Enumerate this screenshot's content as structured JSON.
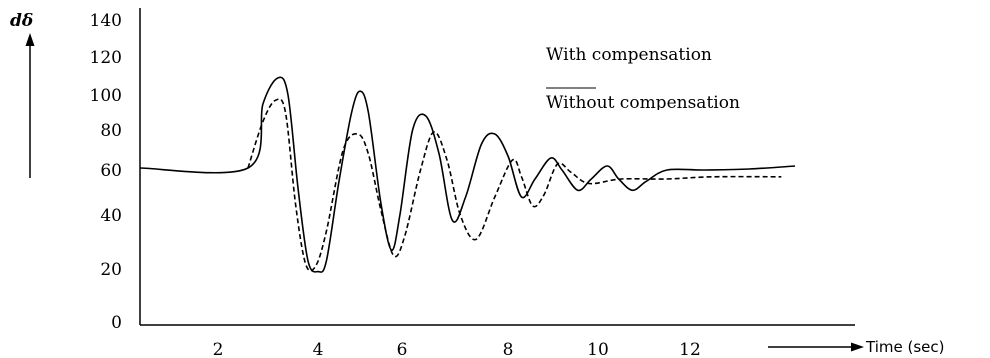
{
  "chart_data": {
    "type": "line",
    "ylabel": "dδ",
    "xlabel": "Time (sec)",
    "ylim": [
      0,
      140
    ],
    "y_ticks": [
      "0",
      "20",
      "40",
      "60",
      "80",
      "100",
      "120",
      "140"
    ],
    "x_ticks": [
      "2",
      "4",
      "6",
      "8",
      "10",
      "12"
    ],
    "grid": false,
    "legend_position": "top-right",
    "series": [
      {
        "name": "With compensation",
        "style": "solid",
        "color": "#000000",
        "points": [
          [
            0,
            61
          ],
          [
            2.6,
            61
          ],
          [
            2.9,
            95
          ],
          [
            3.2,
            109
          ],
          [
            3.4,
            100
          ],
          [
            3.6,
            52
          ],
          [
            3.8,
            23
          ],
          [
            4.0,
            19
          ],
          [
            4.2,
            23
          ],
          [
            4.5,
            55
          ],
          [
            4.8,
            90
          ],
          [
            5.0,
            102
          ],
          [
            5.2,
            90
          ],
          [
            5.5,
            45
          ],
          [
            5.75,
            27
          ],
          [
            5.95,
            40
          ],
          [
            6.2,
            80
          ],
          [
            6.45,
            88
          ],
          [
            6.7,
            68
          ],
          [
            6.95,
            38
          ],
          [
            7.2,
            48
          ],
          [
            7.5,
            73
          ],
          [
            7.75,
            78
          ],
          [
            8.0,
            67
          ],
          [
            8.3,
            48
          ],
          [
            8.6,
            56
          ],
          [
            8.95,
            66
          ],
          [
            9.2,
            60
          ],
          [
            9.55,
            51
          ],
          [
            9.85,
            56
          ],
          [
            10.2,
            62
          ],
          [
            10.45,
            56
          ],
          [
            10.75,
            51
          ],
          [
            11.05,
            55
          ],
          [
            11.5,
            60
          ],
          [
            12.3,
            60
          ],
          [
            13.3,
            60.5
          ],
          [
            14.3,
            62
          ]
        ]
      },
      {
        "name": "Without compensation",
        "style": "dashed",
        "color": "#000000",
        "points": [
          [
            2.6,
            61
          ],
          [
            2.9,
            85
          ],
          [
            3.15,
            97
          ],
          [
            3.35,
            90
          ],
          [
            3.55,
            45
          ],
          [
            3.75,
            22
          ],
          [
            3.95,
            21
          ],
          [
            4.2,
            34
          ],
          [
            4.6,
            70
          ],
          [
            4.95,
            78
          ],
          [
            5.2,
            68
          ],
          [
            5.5,
            42
          ],
          [
            5.8,
            25
          ],
          [
            6.05,
            32
          ],
          [
            6.35,
            60
          ],
          [
            6.6,
            79
          ],
          [
            6.85,
            65
          ],
          [
            7.1,
            40
          ],
          [
            7.4,
            31
          ],
          [
            7.75,
            48
          ],
          [
            8.1,
            65
          ],
          [
            8.3,
            57
          ],
          [
            8.55,
            44
          ],
          [
            8.8,
            49
          ],
          [
            9.1,
            63
          ],
          [
            9.4,
            59
          ],
          [
            9.8,
            54
          ],
          [
            10.5,
            56
          ],
          [
            11.5,
            56
          ],
          [
            12.5,
            57
          ],
          [
            14.0,
            57
          ]
        ]
      }
    ]
  }
}
